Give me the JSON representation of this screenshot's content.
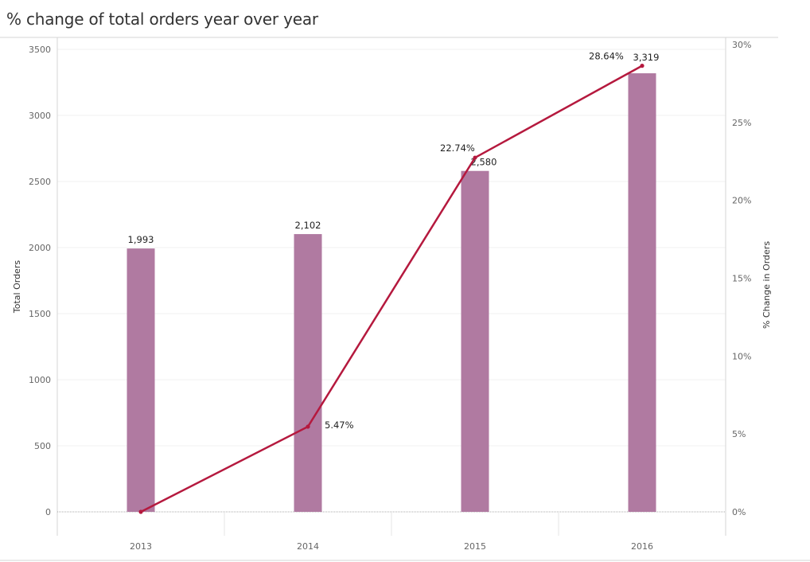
{
  "title": "% change of total orders year over year",
  "chart_data": {
    "type": "bar",
    "categories": [
      "2013",
      "2014",
      "2015",
      "2016"
    ],
    "series": [
      {
        "type": "bar",
        "axis": "left",
        "values": [
          1993,
          2102,
          2580,
          3319
        ],
        "labels": [
          "1,993",
          "2,102",
          "2,580",
          "3,319"
        ],
        "color": "#b07aa1"
      },
      {
        "type": "line",
        "axis": "right",
        "values": [
          0,
          5.47,
          22.74,
          28.64
        ],
        "labels": [
          "",
          "5.47%",
          "22.74%",
          "28.64%"
        ],
        "color": "#b5193e"
      }
    ],
    "y_left": {
      "label": "Total Orders",
      "ylim": [
        0,
        3500
      ],
      "ticks": [
        0,
        500,
        1000,
        1500,
        2000,
        2500,
        3000,
        3500
      ],
      "tick_labels": [
        "0",
        "500",
        "1000",
        "1500",
        "2000",
        "2500",
        "3000",
        "3500"
      ]
    },
    "y_right": {
      "label": "% Change in Orders",
      "ylim": [
        0,
        30
      ],
      "ticks": [
        0,
        5,
        10,
        15,
        20,
        25,
        30
      ],
      "tick_labels": [
        "0%",
        "5%",
        "10%",
        "15%",
        "20%",
        "25%",
        "30%"
      ]
    },
    "grid": true,
    "legend": "none"
  }
}
